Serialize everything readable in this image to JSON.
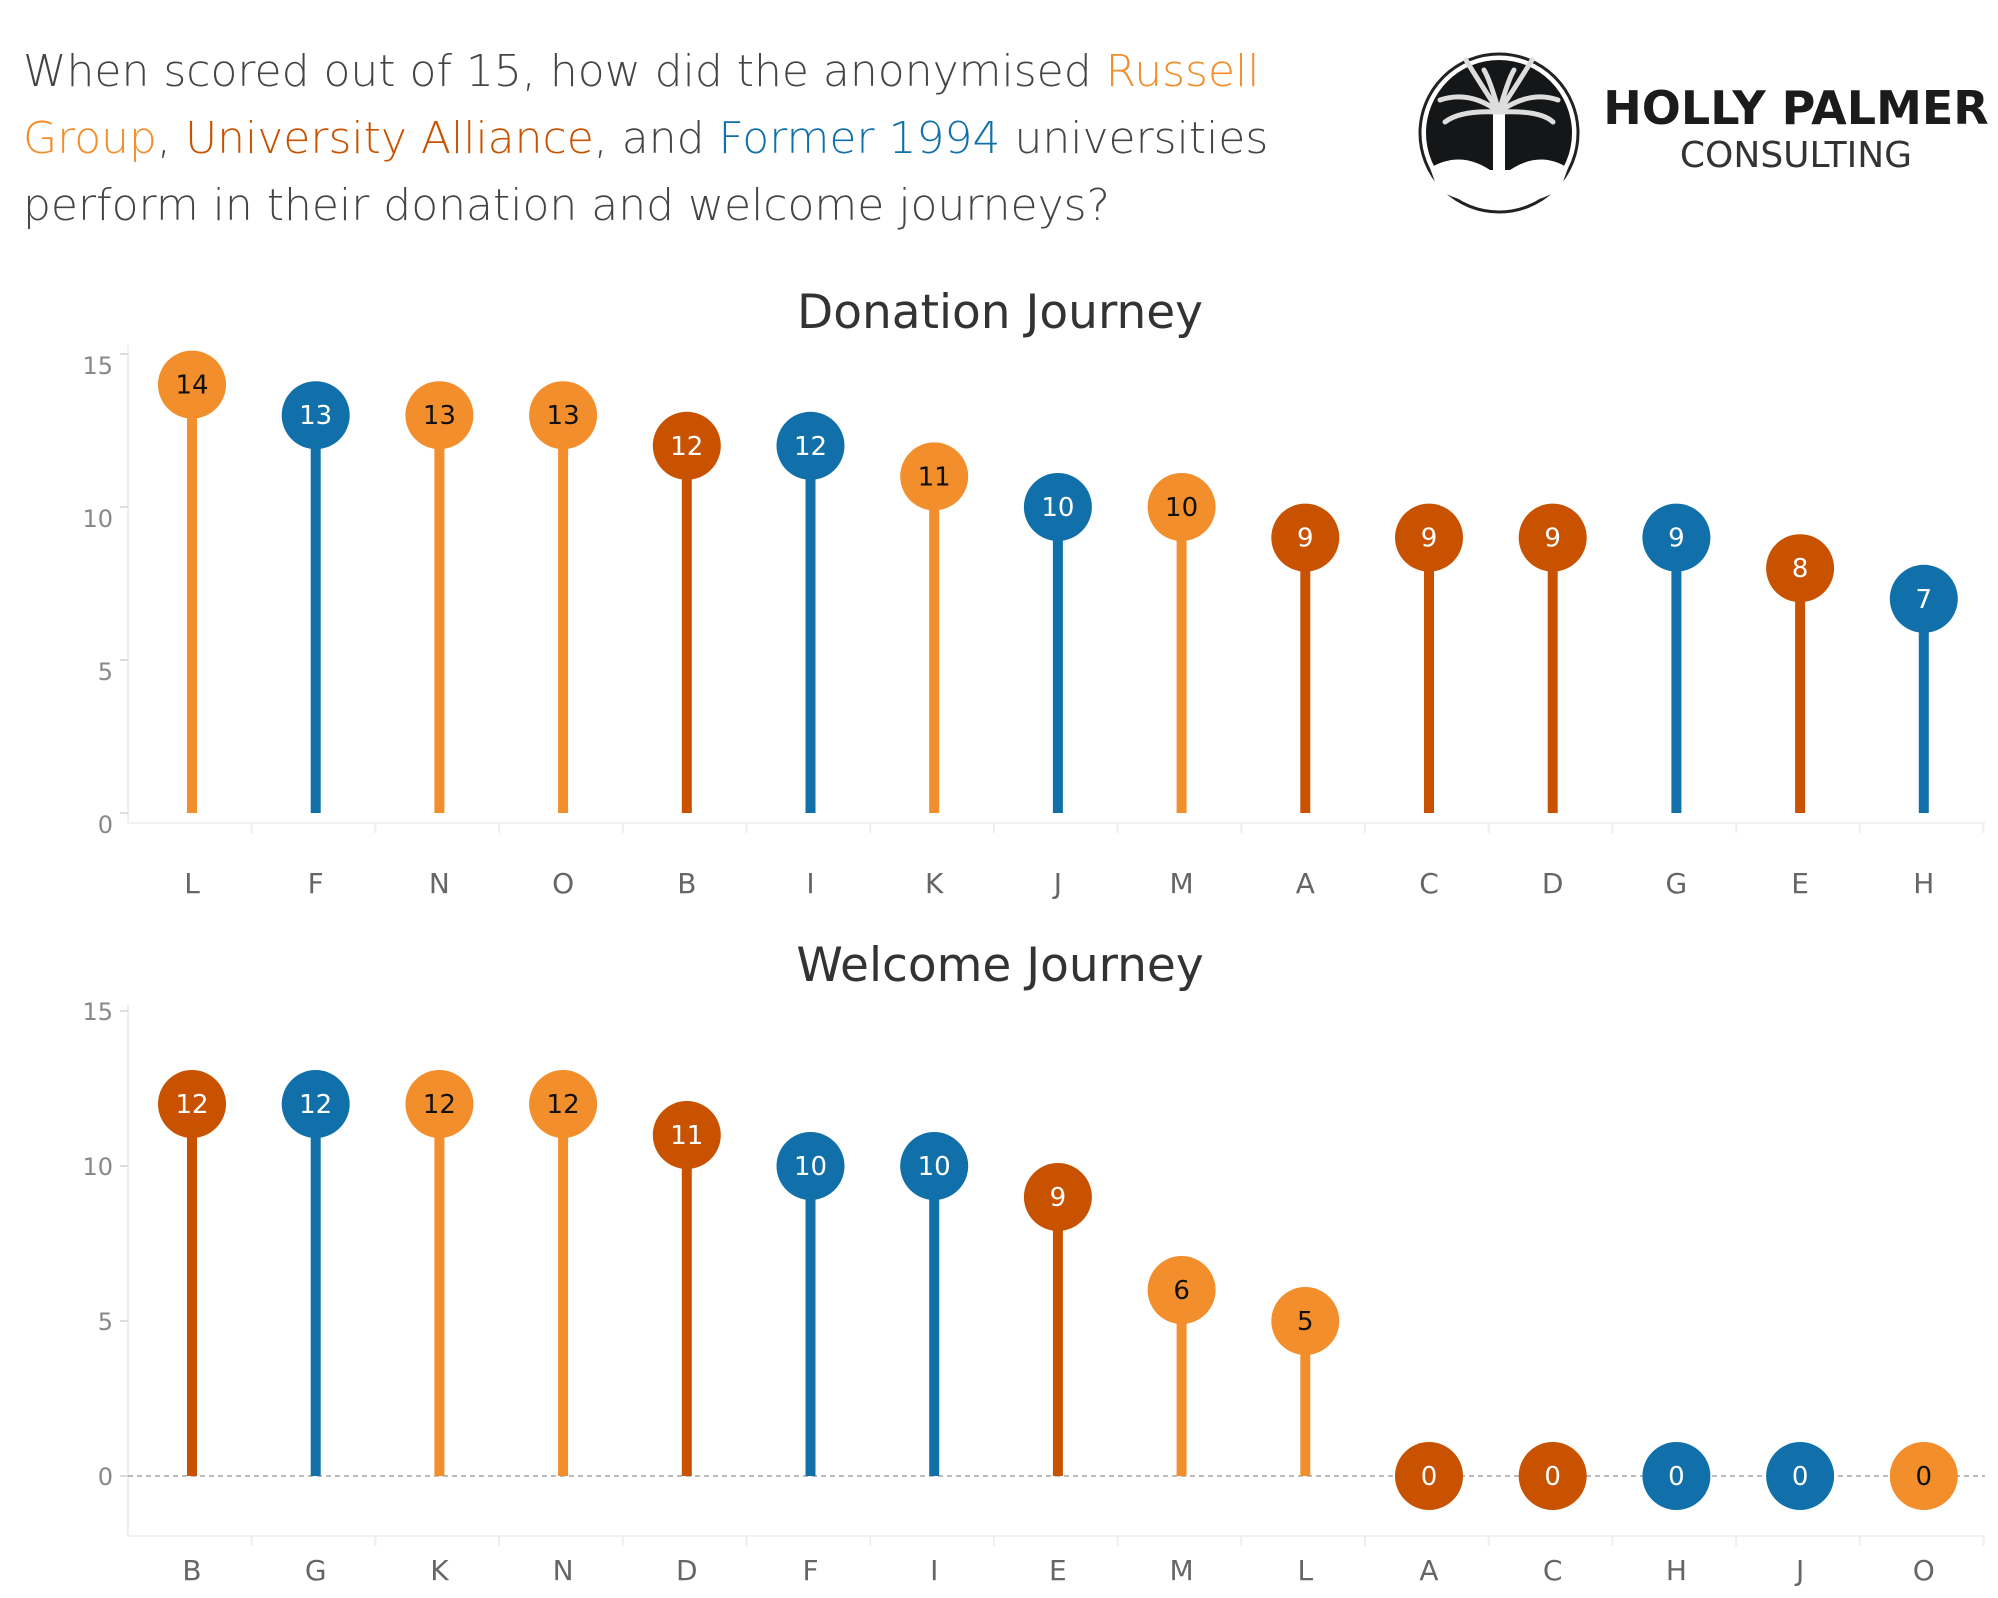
{
  "headline": {
    "part1": "When scored out of 15, how did the anonymised ",
    "russell": "Russell Group",
    "sep1": ", ",
    "alliance": "University Alliance",
    "sep2": ", and ",
    "former": "Former 1994",
    "part2": " universities perform in their donation and welcome journeys?"
  },
  "logo": {
    "name": "HOLLY PALMER",
    "sub": "CONSULTING"
  },
  "colors": {
    "Russell Group": "#f28e2b",
    "University Alliance": "#c85200",
    "Former 1994": "#1170aa"
  },
  "chart_data": [
    {
      "type": "lollipop",
      "title": "Donation Journey",
      "ylim": [
        0,
        15
      ],
      "yticks": [
        0,
        5,
        10,
        15
      ],
      "categories": [
        "L",
        "F",
        "N",
        "O",
        "B",
        "I",
        "K",
        "J",
        "M",
        "A",
        "C",
        "D",
        "G",
        "E",
        "H"
      ],
      "values": [
        14,
        13,
        13,
        13,
        12,
        12,
        11,
        10,
        10,
        9,
        9,
        9,
        9,
        8,
        7
      ],
      "groups": [
        "Russell Group",
        "Former 1994",
        "Russell Group",
        "Russell Group",
        "University Alliance",
        "Former 1994",
        "Russell Group",
        "Former 1994",
        "Russell Group",
        "University Alliance",
        "University Alliance",
        "University Alliance",
        "Former 1994",
        "University Alliance",
        "Former 1994"
      ]
    },
    {
      "type": "lollipop",
      "title": "Welcome Journey",
      "ylim": [
        0,
        15
      ],
      "yticks": [
        0,
        5,
        10,
        15
      ],
      "categories": [
        "B",
        "G",
        "K",
        "N",
        "D",
        "F",
        "I",
        "E",
        "M",
        "L",
        "A",
        "C",
        "H",
        "J",
        "O"
      ],
      "values": [
        12,
        12,
        12,
        12,
        11,
        10,
        10,
        9,
        6,
        5,
        0,
        0,
        0,
        0,
        0
      ],
      "groups": [
        "University Alliance",
        "Former 1994",
        "Russell Group",
        "Russell Group",
        "University Alliance",
        "Former 1994",
        "Former 1994",
        "University Alliance",
        "Russell Group",
        "Russell Group",
        "University Alliance",
        "University Alliance",
        "Former 1994",
        "Former 1994",
        "Russell Group"
      ]
    }
  ]
}
